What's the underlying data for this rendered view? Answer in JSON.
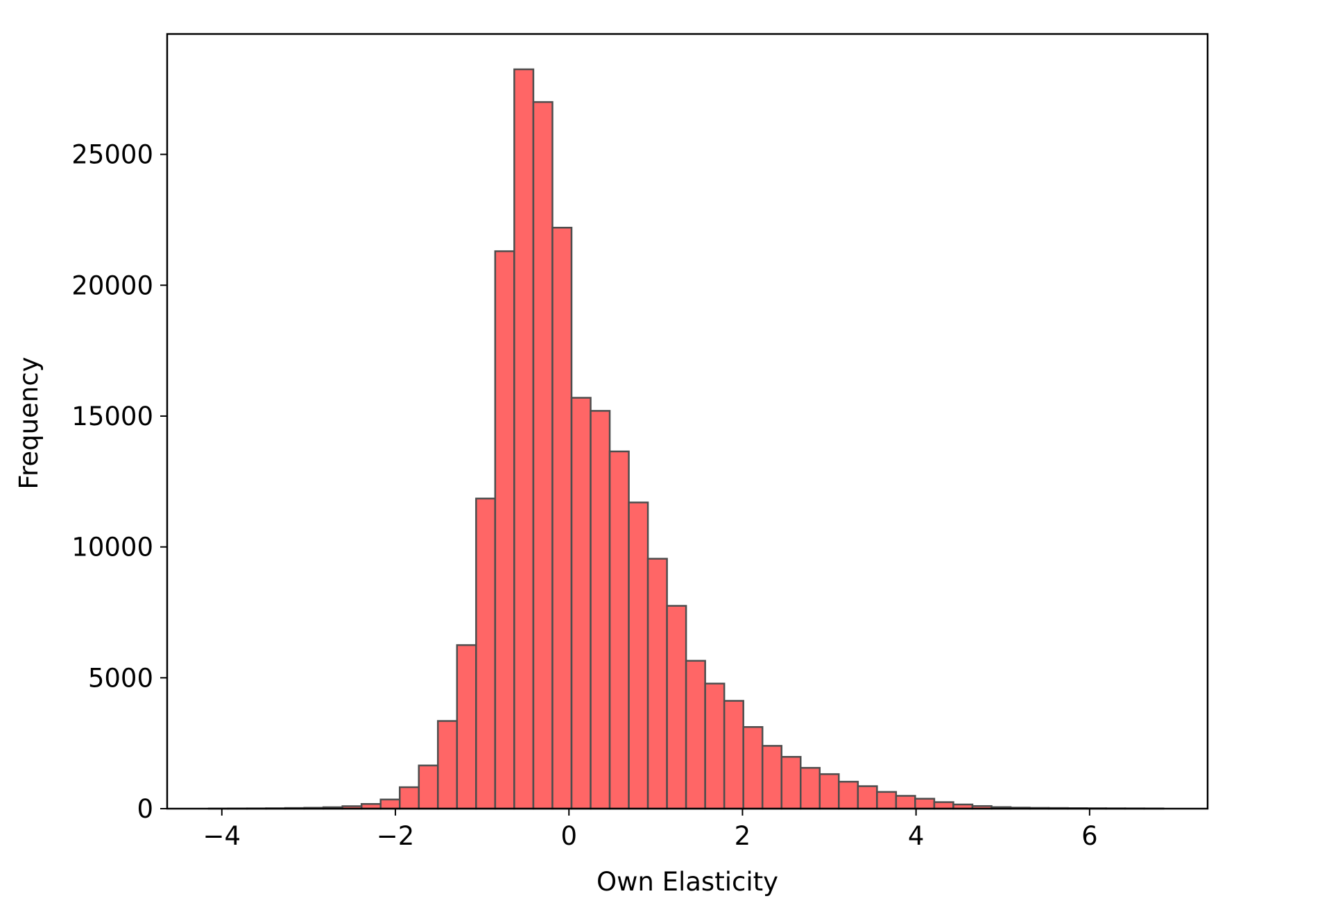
{
  "chart_data": {
    "type": "bar",
    "subtype": "histogram",
    "title": "",
    "xlabel": "Own Elasticity",
    "ylabel": "Frequency",
    "xlim": [
      -4.63,
      7.36
    ],
    "ylim": [
      0,
      29600
    ],
    "x_ticks": [
      -4,
      -2,
      0,
      2,
      4,
      6
    ],
    "x_tick_labels": [
      "−4",
      "−2",
      "0",
      "2",
      "4",
      "6"
    ],
    "y_ticks": [
      0,
      5000,
      10000,
      15000,
      20000,
      25000
    ],
    "y_tick_labels": [
      "0",
      "5000",
      "10000",
      "15000",
      "20000",
      "25000"
    ],
    "grid": false,
    "bin_start": -4.15,
    "bin_width": 0.22,
    "values": [
      5,
      8,
      10,
      15,
      25,
      35,
      55,
      95,
      180,
      350,
      820,
      1650,
      3350,
      6250,
      11850,
      21300,
      28250,
      27000,
      22200,
      15700,
      15200,
      13650,
      11700,
      9550,
      7750,
      5650,
      4780,
      4120,
      3120,
      2400,
      1980,
      1560,
      1320,
      1030,
      860,
      640,
      490,
      380,
      250,
      160,
      100,
      60,
      40,
      30,
      25,
      20,
      15,
      12,
      10,
      8
    ],
    "colors": {
      "bar_fill": "#ff6666",
      "bar_edge": "#4d4d4d",
      "axes": "#000000"
    }
  }
}
